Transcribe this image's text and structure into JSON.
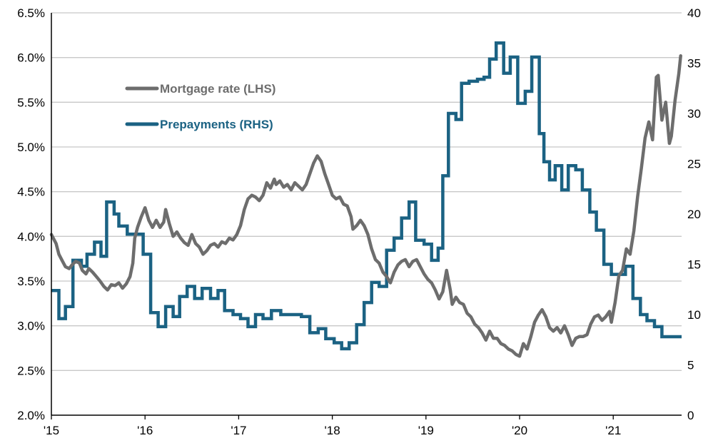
{
  "chart_data": {
    "type": "line",
    "x_axis": {
      "range": [
        2015,
        2021.73
      ],
      "ticks": [
        {
          "value": 2015,
          "label": "'15"
        },
        {
          "value": 2016,
          "label": "'16"
        },
        {
          "value": 2017,
          "label": "'17"
        },
        {
          "value": 2018,
          "label": "'18"
        },
        {
          "value": 2019,
          "label": "'19"
        },
        {
          "value": 2020,
          "label": "'20"
        },
        {
          "value": 2021,
          "label": "'21"
        }
      ]
    },
    "y_left": {
      "range": [
        2.0,
        6.5
      ],
      "ticks": [
        "2.0%",
        "2.5%",
        "3.0%",
        "3.5%",
        "4.0%",
        "4.5%",
        "5.0%",
        "5.5%",
        "6.0%",
        "6.5%"
      ],
      "tick_values": [
        2.0,
        2.5,
        3.0,
        3.5,
        4.0,
        4.5,
        5.0,
        5.5,
        6.0,
        6.5
      ]
    },
    "y_right": {
      "range": [
        0,
        40
      ],
      "ticks": [
        "0",
        "5",
        "10",
        "15",
        "20",
        "25",
        "30",
        "35",
        "40"
      ],
      "tick_values": [
        0,
        5,
        10,
        15,
        20,
        25,
        30,
        35,
        40
      ]
    },
    "grid": "horizontal",
    "legend_position": "top-left",
    "series": [
      {
        "name": "Mortgage rate (LHS)",
        "axis": "left",
        "color": "#6d6d6d",
        "points": [
          [
            2015.0,
            4.02
          ],
          [
            2015.05,
            3.92
          ],
          [
            2015.08,
            3.8
          ],
          [
            2015.12,
            3.72
          ],
          [
            2015.15,
            3.66
          ],
          [
            2015.19,
            3.64
          ],
          [
            2015.22,
            3.68
          ],
          [
            2015.26,
            3.72
          ],
          [
            2015.3,
            3.7
          ],
          [
            2015.33,
            3.62
          ],
          [
            2015.37,
            3.58
          ],
          [
            2015.4,
            3.64
          ],
          [
            2015.44,
            3.6
          ],
          [
            2015.48,
            3.55
          ],
          [
            2015.52,
            3.5
          ],
          [
            2015.56,
            3.44
          ],
          [
            2015.6,
            3.4
          ],
          [
            2015.64,
            3.46
          ],
          [
            2015.68,
            3.45
          ],
          [
            2015.72,
            3.48
          ],
          [
            2015.76,
            3.42
          ],
          [
            2015.8,
            3.47
          ],
          [
            2015.84,
            3.55
          ],
          [
            2015.87,
            3.7
          ],
          [
            2015.89,
            3.98
          ],
          [
            2015.92,
            4.1
          ],
          [
            2015.96,
            4.22
          ],
          [
            2016.0,
            4.32
          ],
          [
            2016.04,
            4.18
          ],
          [
            2016.08,
            4.1
          ],
          [
            2016.12,
            4.18
          ],
          [
            2016.16,
            4.1
          ],
          [
            2016.2,
            4.16
          ],
          [
            2016.22,
            4.3
          ],
          [
            2016.26,
            4.14
          ],
          [
            2016.3,
            4.0
          ],
          [
            2016.34,
            4.05
          ],
          [
            2016.38,
            3.98
          ],
          [
            2016.42,
            3.93
          ],
          [
            2016.46,
            3.9
          ],
          [
            2016.5,
            4.02
          ],
          [
            2016.54,
            3.92
          ],
          [
            2016.58,
            3.88
          ],
          [
            2016.62,
            3.8
          ],
          [
            2016.66,
            3.84
          ],
          [
            2016.7,
            3.9
          ],
          [
            2016.74,
            3.92
          ],
          [
            2016.78,
            3.88
          ],
          [
            2016.82,
            3.94
          ],
          [
            2016.86,
            3.92
          ],
          [
            2016.9,
            3.98
          ],
          [
            2016.94,
            3.96
          ],
          [
            2016.98,
            4.02
          ],
          [
            2017.02,
            4.12
          ],
          [
            2017.06,
            4.3
          ],
          [
            2017.1,
            4.42
          ],
          [
            2017.14,
            4.46
          ],
          [
            2017.18,
            4.44
          ],
          [
            2017.22,
            4.4
          ],
          [
            2017.26,
            4.46
          ],
          [
            2017.3,
            4.6
          ],
          [
            2017.34,
            4.54
          ],
          [
            2017.38,
            4.64
          ],
          [
            2017.4,
            4.58
          ],
          [
            2017.44,
            4.62
          ],
          [
            2017.48,
            4.55
          ],
          [
            2017.52,
            4.58
          ],
          [
            2017.56,
            4.52
          ],
          [
            2017.6,
            4.6
          ],
          [
            2017.64,
            4.56
          ],
          [
            2017.68,
            4.52
          ],
          [
            2017.72,
            4.58
          ],
          [
            2017.76,
            4.7
          ],
          [
            2017.8,
            4.82
          ],
          [
            2017.84,
            4.9
          ],
          [
            2017.88,
            4.84
          ],
          [
            2017.92,
            4.7
          ],
          [
            2017.96,
            4.58
          ],
          [
            2018.0,
            4.46
          ],
          [
            2018.04,
            4.42
          ],
          [
            2018.08,
            4.44
          ],
          [
            2018.12,
            4.36
          ],
          [
            2018.16,
            4.34
          ],
          [
            2018.2,
            4.22
          ],
          [
            2018.22,
            4.08
          ],
          [
            2018.26,
            4.12
          ],
          [
            2018.3,
            4.18
          ],
          [
            2018.34,
            4.12
          ],
          [
            2018.38,
            4.02
          ],
          [
            2018.42,
            3.86
          ],
          [
            2018.46,
            3.74
          ],
          [
            2018.5,
            3.7
          ],
          [
            2018.54,
            3.6
          ],
          [
            2018.58,
            3.55
          ],
          [
            2018.62,
            3.48
          ],
          [
            2018.66,
            3.6
          ],
          [
            2018.7,
            3.68
          ],
          [
            2018.74,
            3.72
          ],
          [
            2018.78,
            3.74
          ],
          [
            2018.82,
            3.66
          ],
          [
            2018.86,
            3.72
          ],
          [
            2018.9,
            3.74
          ],
          [
            2018.94,
            3.66
          ],
          [
            2018.98,
            3.58
          ],
          [
            2019.02,
            3.52
          ],
          [
            2019.06,
            3.48
          ],
          [
            2019.1,
            3.4
          ],
          [
            2019.14,
            3.3
          ],
          [
            2019.18,
            3.38
          ],
          [
            2019.22,
            3.62
          ],
          [
            2019.26,
            3.4
          ],
          [
            2019.28,
            3.24
          ],
          [
            2019.32,
            3.32
          ],
          [
            2019.36,
            3.26
          ],
          [
            2019.4,
            3.24
          ],
          [
            2019.44,
            3.14
          ],
          [
            2019.48,
            3.1
          ],
          [
            2019.52,
            3.02
          ],
          [
            2019.56,
            2.98
          ],
          [
            2019.6,
            2.92
          ],
          [
            2019.64,
            2.84
          ],
          [
            2019.68,
            2.94
          ],
          [
            2019.72,
            2.86
          ],
          [
            2019.76,
            2.86
          ],
          [
            2019.8,
            2.8
          ],
          [
            2019.84,
            2.78
          ],
          [
            2019.88,
            2.74
          ],
          [
            2019.92,
            2.72
          ],
          [
            2019.96,
            2.68
          ],
          [
            2020.0,
            2.66
          ],
          [
            2020.04,
            2.8
          ],
          [
            2020.08,
            2.74
          ],
          [
            2020.12,
            2.88
          ],
          [
            2020.16,
            3.04
          ],
          [
            2020.2,
            3.12
          ],
          [
            2020.24,
            3.18
          ],
          [
            2020.28,
            3.1
          ],
          [
            2020.32,
            2.98
          ],
          [
            2020.36,
            2.94
          ],
          [
            2020.4,
            2.98
          ],
          [
            2020.44,
            2.92
          ],
          [
            2020.48,
            3.0
          ],
          [
            2020.52,
            2.9
          ],
          [
            2020.56,
            2.78
          ],
          [
            2020.6,
            2.86
          ],
          [
            2020.64,
            2.88
          ],
          [
            2020.68,
            2.88
          ],
          [
            2020.72,
            2.9
          ],
          [
            2020.76,
            3.02
          ],
          [
            2020.8,
            3.1
          ],
          [
            2020.84,
            3.12
          ],
          [
            2020.88,
            3.06
          ],
          [
            2020.92,
            3.1
          ],
          [
            2020.96,
            3.16
          ],
          [
            2020.98,
            3.04
          ],
          [
            2021.02,
            3.26
          ],
          [
            2021.06,
            3.56
          ],
          [
            2021.1,
            3.62
          ],
          [
            2021.14,
            3.86
          ],
          [
            2021.18,
            3.8
          ],
          [
            2021.22,
            4.06
          ],
          [
            2021.26,
            4.44
          ],
          [
            2021.3,
            4.76
          ],
          [
            2021.34,
            5.1
          ],
          [
            2021.38,
            5.28
          ],
          [
            2021.42,
            5.08
          ],
          [
            2021.46,
            5.78
          ],
          [
            2021.48,
            5.8
          ],
          [
            2021.52,
            5.3
          ],
          [
            2021.56,
            5.5
          ],
          [
            2021.6,
            5.04
          ],
          [
            2021.62,
            5.12
          ],
          [
            2021.66,
            5.52
          ],
          [
            2021.7,
            5.82
          ],
          [
            2021.72,
            6.02
          ]
        ]
      },
      {
        "name": "Prepayments (RHS)",
        "axis": "right",
        "color": "#1b6283",
        "steps": [
          [
            2015.0,
            12.4
          ],
          [
            2015.08,
            9.6
          ],
          [
            2015.15,
            10.8
          ],
          [
            2015.23,
            15.4
          ],
          [
            2015.32,
            14.8
          ],
          [
            2015.38,
            16.0
          ],
          [
            2015.46,
            17.2
          ],
          [
            2015.53,
            15.8
          ],
          [
            2015.59,
            21.2
          ],
          [
            2015.67,
            20.0
          ],
          [
            2015.72,
            18.8
          ],
          [
            2015.81,
            18.0
          ],
          [
            2015.89,
            18.0
          ],
          [
            2015.98,
            16.0
          ],
          [
            2016.06,
            10.2
          ],
          [
            2016.14,
            8.8
          ],
          [
            2016.22,
            10.8
          ],
          [
            2016.3,
            9.8
          ],
          [
            2016.37,
            11.8
          ],
          [
            2016.45,
            12.8
          ],
          [
            2016.53,
            11.6
          ],
          [
            2016.61,
            12.6
          ],
          [
            2016.7,
            11.6
          ],
          [
            2016.78,
            12.4
          ],
          [
            2016.85,
            10.4
          ],
          [
            2016.94,
            10.0
          ],
          [
            2017.02,
            9.6
          ],
          [
            2017.1,
            8.8
          ],
          [
            2017.18,
            10.0
          ],
          [
            2017.26,
            9.6
          ],
          [
            2017.35,
            10.4
          ],
          [
            2017.45,
            10.0
          ],
          [
            2017.55,
            10.0
          ],
          [
            2017.67,
            9.8
          ],
          [
            2017.76,
            8.2
          ],
          [
            2017.85,
            8.6
          ],
          [
            2017.93,
            7.6
          ],
          [
            2018.02,
            7.2
          ],
          [
            2018.1,
            6.6
          ],
          [
            2018.18,
            7.2
          ],
          [
            2018.26,
            9.0
          ],
          [
            2018.34,
            11.2
          ],
          [
            2018.42,
            13.2
          ],
          [
            2018.5,
            12.8
          ],
          [
            2018.58,
            16.4
          ],
          [
            2018.66,
            17.6
          ],
          [
            2018.74,
            19.6
          ],
          [
            2018.82,
            21.2
          ],
          [
            2018.89,
            17.4
          ],
          [
            2018.98,
            17.0
          ],
          [
            2019.06,
            15.4
          ],
          [
            2019.13,
            16.6
          ],
          [
            2019.18,
            23.8
          ],
          [
            2019.24,
            30.0
          ],
          [
            2019.32,
            29.4
          ],
          [
            2019.38,
            33.0
          ],
          [
            2019.46,
            33.2
          ],
          [
            2019.55,
            33.4
          ],
          [
            2019.62,
            33.6
          ],
          [
            2019.68,
            35.4
          ],
          [
            2019.75,
            37.0
          ],
          [
            2019.83,
            34.0
          ],
          [
            2019.9,
            35.6
          ],
          [
            2019.98,
            31.0
          ],
          [
            2020.06,
            32.2
          ],
          [
            2020.13,
            35.6
          ],
          [
            2020.21,
            28.0
          ],
          [
            2020.26,
            25.2
          ],
          [
            2020.32,
            23.4
          ],
          [
            2020.38,
            24.8
          ],
          [
            2020.45,
            22.4
          ],
          [
            2020.52,
            24.8
          ],
          [
            2020.6,
            24.4
          ],
          [
            2020.67,
            22.4
          ],
          [
            2020.75,
            20.2
          ],
          [
            2020.82,
            18.4
          ],
          [
            2020.9,
            15.0
          ],
          [
            2020.98,
            14.0
          ],
          [
            2021.05,
            14.0
          ],
          [
            2021.13,
            14.8
          ],
          [
            2021.21,
            11.6
          ],
          [
            2021.29,
            10.0
          ],
          [
            2021.36,
            9.4
          ],
          [
            2021.44,
            8.8
          ],
          [
            2021.52,
            7.8
          ],
          [
            2021.73,
            7.8
          ]
        ]
      }
    ]
  }
}
